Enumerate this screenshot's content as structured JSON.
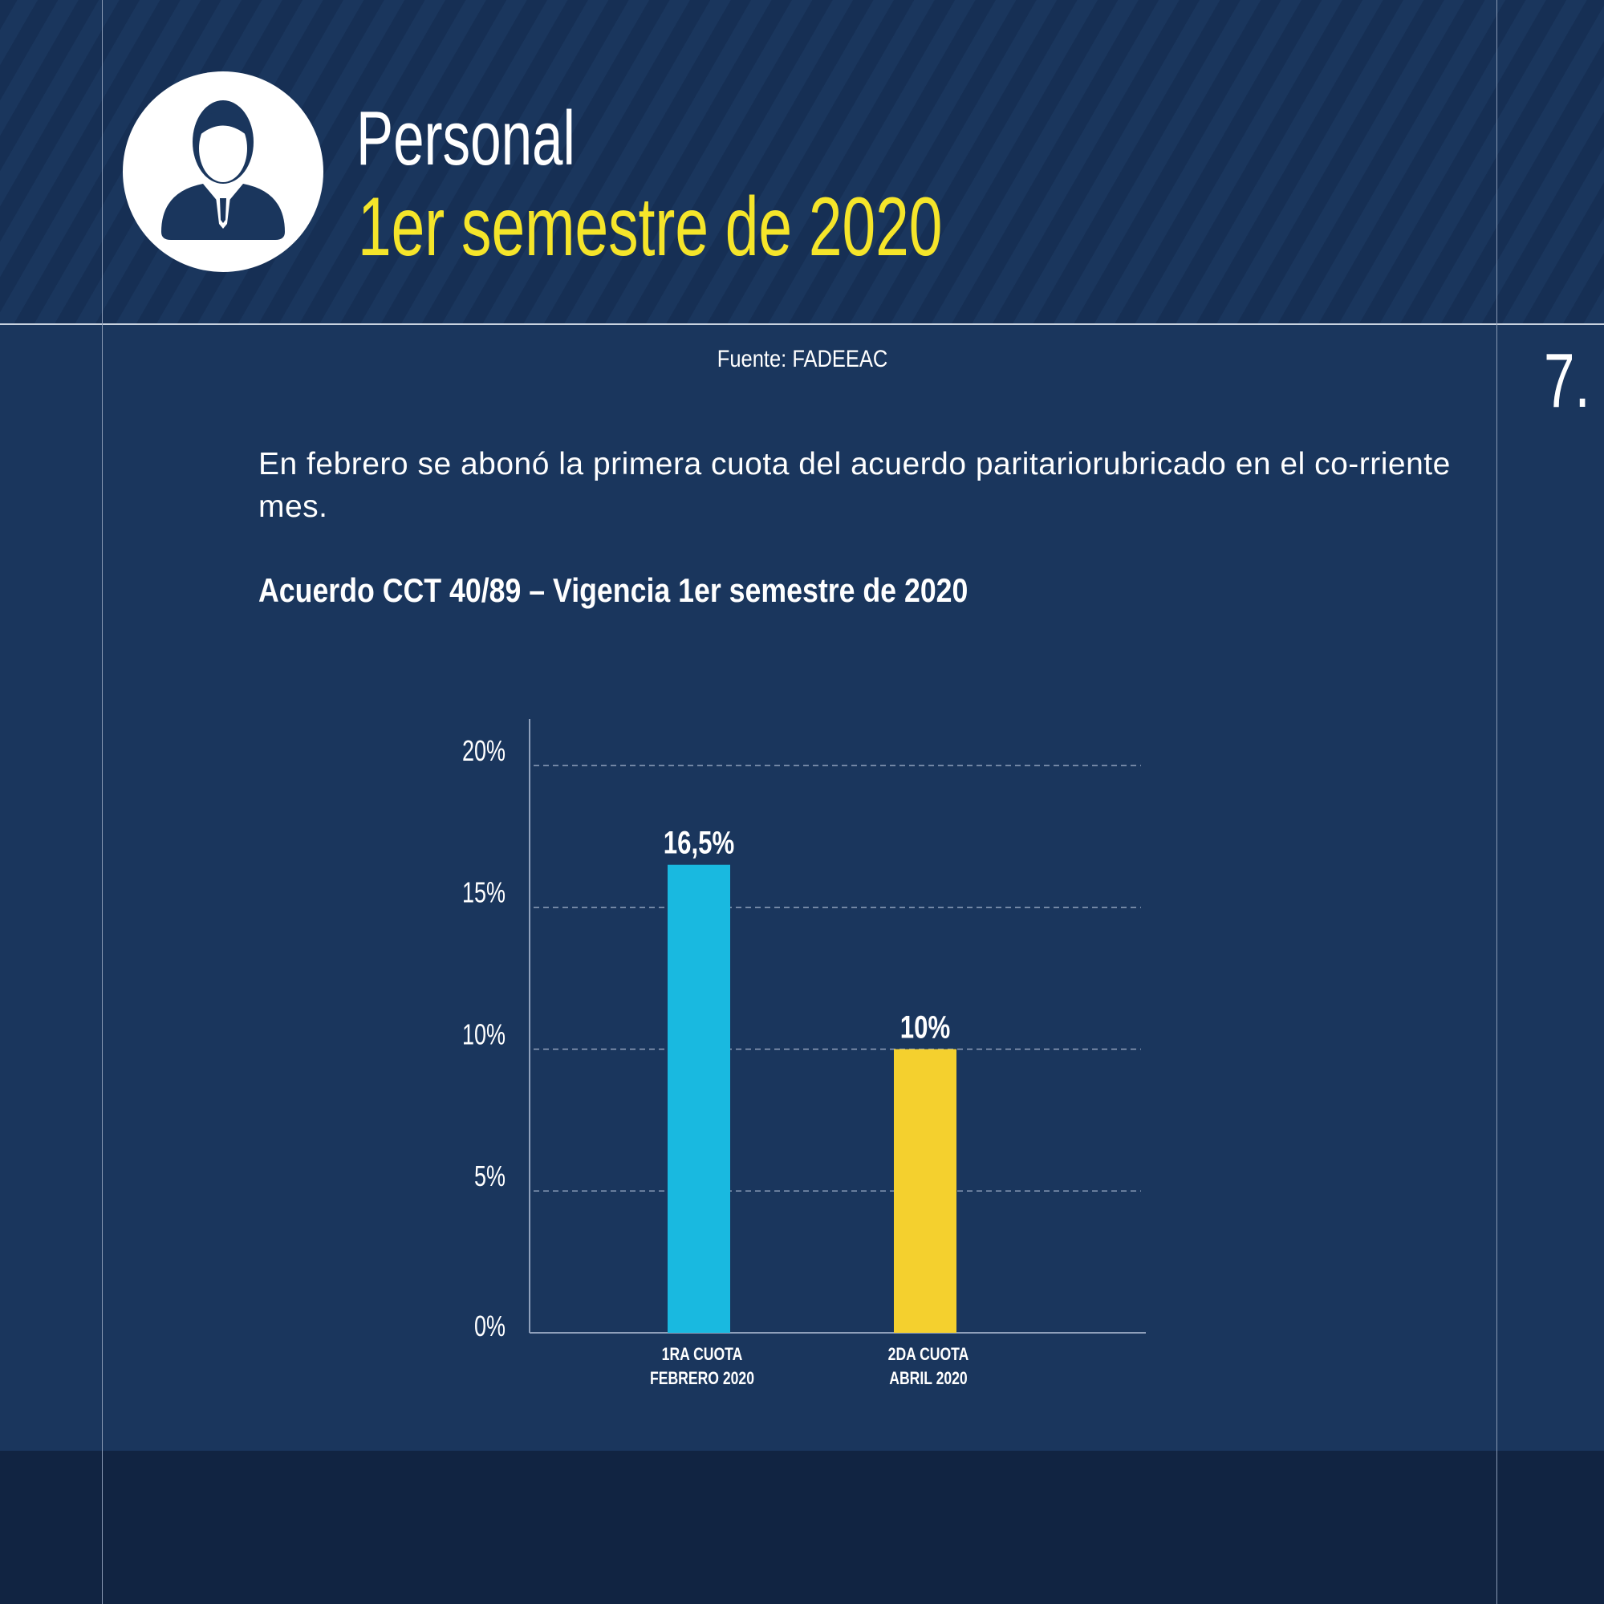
{
  "header": {
    "title": "Personal",
    "subtitle": "1er semestre de 2020",
    "icon": "businessman-icon"
  },
  "source": "Fuente: FADEEAC",
  "page_number": "7.",
  "paragraph": "En febrero se abonó la primera cuota del acuerdo paritariorubricado en el co-rriente mes.",
  "colors": {
    "background": "#1a365d",
    "accent_yellow": "#f5e52a",
    "bar1": "#19b9e0",
    "bar2": "#f4d02e"
  },
  "chart_data": {
    "type": "bar",
    "title": "Acuerdo CCT 40/89 – Vigencia 1er semestre de 2020",
    "categories": [
      [
        "1RA CUOTA",
        "FEBRERO 2020"
      ],
      [
        "2DA CUOTA",
        "ABRIL 2020"
      ]
    ],
    "values": [
      16.5,
      10
    ],
    "value_labels": [
      "16,5%",
      "10%"
    ],
    "bar_colors": [
      "#19b9e0",
      "#f4d02e"
    ],
    "ylim": [
      0,
      20
    ],
    "yticks": [
      0,
      5,
      10,
      15,
      20
    ],
    "ytick_labels": [
      "0%",
      "5%",
      "10%",
      "15%",
      "20%"
    ],
    "grid": "dashed horizontal",
    "xlabel": "",
    "ylabel": ""
  }
}
